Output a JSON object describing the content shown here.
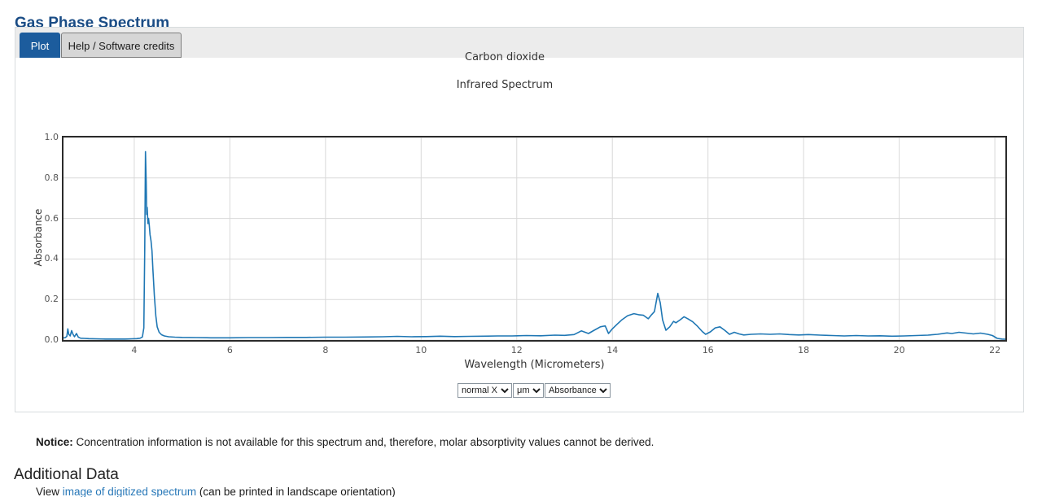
{
  "page": {
    "title": "Gas Phase Spectrum",
    "tabs": [
      {
        "label": "Plot",
        "active": true
      },
      {
        "label": "Help / Software credits",
        "active": false
      }
    ],
    "notice_label": "Notice:",
    "notice_text": " Concentration information is not available for this spectrum and, therefore, molar absorptivity values cannot be derived.",
    "additional_data_heading": "Additional Data",
    "view_prefix": "View ",
    "view_link_text": "image of digitized spectrum",
    "view_suffix": " (can be printed in landscape orientation)"
  },
  "controls": {
    "x_scale_selected": "normal X",
    "x_units_selected": "μm",
    "y_units_selected": "Absorbance"
  },
  "colors": {
    "title_blue": "#1a4c85",
    "active_tab_blue": "#1c5c9d",
    "line_blue": "#1f77b4",
    "grid_gray": "#d9d9d9",
    "frame_dark": "#2b2b2b",
    "link_blue": "#2878b8"
  },
  "chart_data": {
    "type": "line",
    "title": "Carbon dioxide",
    "subtitle": "Infrared Spectrum",
    "xlabel": "Wavelength (Micrometers)",
    "ylabel": "Absorbance",
    "xlim": [
      2.52,
      22.22
    ],
    "ylim": [
      0.0,
      1.0
    ],
    "xticks": [
      4,
      6,
      8,
      10,
      12,
      14,
      16,
      18,
      20,
      22
    ],
    "yticks": [
      0.0,
      0.2,
      0.4,
      0.6,
      0.8,
      1.0
    ],
    "grid": true,
    "legend": "none",
    "line_color": "#1f77b4",
    "series": [
      {
        "name": "Absorbance",
        "points": [
          [
            2.52,
            0.01
          ],
          [
            2.56,
            0.012
          ],
          [
            2.59,
            0.018
          ],
          [
            2.61,
            0.055
          ],
          [
            2.63,
            0.028
          ],
          [
            2.66,
            0.02
          ],
          [
            2.69,
            0.046
          ],
          [
            2.72,
            0.028
          ],
          [
            2.75,
            0.016
          ],
          [
            2.79,
            0.032
          ],
          [
            2.83,
            0.014
          ],
          [
            2.88,
            0.009
          ],
          [
            2.95,
            0.008
          ],
          [
            3.05,
            0.007
          ],
          [
            3.2,
            0.006
          ],
          [
            3.4,
            0.005
          ],
          [
            3.6,
            0.005
          ],
          [
            3.8,
            0.005
          ],
          [
            3.95,
            0.006
          ],
          [
            4.05,
            0.007
          ],
          [
            4.12,
            0.009
          ],
          [
            4.17,
            0.015
          ],
          [
            4.2,
            0.06
          ],
          [
            4.22,
            0.45
          ],
          [
            4.235,
            0.93
          ],
          [
            4.25,
            0.78
          ],
          [
            4.26,
            0.62
          ],
          [
            4.27,
            0.655
          ],
          [
            4.285,
            0.575
          ],
          [
            4.3,
            0.6
          ],
          [
            4.315,
            0.565
          ],
          [
            4.33,
            0.52
          ],
          [
            4.35,
            0.49
          ],
          [
            4.37,
            0.44
          ],
          [
            4.39,
            0.35
          ],
          [
            4.42,
            0.22
          ],
          [
            4.45,
            0.12
          ],
          [
            4.48,
            0.065
          ],
          [
            4.52,
            0.038
          ],
          [
            4.57,
            0.026
          ],
          [
            4.63,
            0.02
          ],
          [
            4.72,
            0.016
          ],
          [
            4.85,
            0.014
          ],
          [
            5.0,
            0.013
          ],
          [
            5.3,
            0.012
          ],
          [
            5.6,
            0.011
          ],
          [
            6.0,
            0.011
          ],
          [
            6.4,
            0.012
          ],
          [
            6.8,
            0.012
          ],
          [
            7.2,
            0.013
          ],
          [
            7.6,
            0.013
          ],
          [
            8.0,
            0.014
          ],
          [
            8.4,
            0.014
          ],
          [
            8.8,
            0.015
          ],
          [
            9.2,
            0.016
          ],
          [
            9.5,
            0.018
          ],
          [
            9.8,
            0.016
          ],
          [
            10.1,
            0.017
          ],
          [
            10.4,
            0.019
          ],
          [
            10.7,
            0.017
          ],
          [
            11.0,
            0.018
          ],
          [
            11.3,
            0.019
          ],
          [
            11.6,
            0.02
          ],
          [
            11.9,
            0.02
          ],
          [
            12.2,
            0.022
          ],
          [
            12.5,
            0.021
          ],
          [
            12.8,
            0.024
          ],
          [
            13.0,
            0.023
          ],
          [
            13.2,
            0.027
          ],
          [
            13.35,
            0.045
          ],
          [
            13.5,
            0.032
          ],
          [
            13.62,
            0.048
          ],
          [
            13.75,
            0.065
          ],
          [
            13.85,
            0.07
          ],
          [
            13.92,
            0.032
          ],
          [
            14.0,
            0.055
          ],
          [
            14.1,
            0.078
          ],
          [
            14.2,
            0.1
          ],
          [
            14.32,
            0.12
          ],
          [
            14.45,
            0.13
          ],
          [
            14.55,
            0.125
          ],
          [
            14.65,
            0.122
          ],
          [
            14.75,
            0.105
          ],
          [
            14.82,
            0.125
          ],
          [
            14.88,
            0.14
          ],
          [
            14.95,
            0.23
          ],
          [
            15.0,
            0.185
          ],
          [
            15.05,
            0.1
          ],
          [
            15.12,
            0.048
          ],
          [
            15.2,
            0.065
          ],
          [
            15.28,
            0.092
          ],
          [
            15.33,
            0.085
          ],
          [
            15.42,
            0.1
          ],
          [
            15.5,
            0.115
          ],
          [
            15.58,
            0.105
          ],
          [
            15.68,
            0.09
          ],
          [
            15.78,
            0.068
          ],
          [
            15.88,
            0.042
          ],
          [
            15.95,
            0.028
          ],
          [
            16.05,
            0.04
          ],
          [
            16.15,
            0.06
          ],
          [
            16.25,
            0.065
          ],
          [
            16.35,
            0.048
          ],
          [
            16.45,
            0.028
          ],
          [
            16.55,
            0.038
          ],
          [
            16.65,
            0.03
          ],
          [
            16.75,
            0.025
          ],
          [
            16.9,
            0.028
          ],
          [
            17.1,
            0.03
          ],
          [
            17.3,
            0.028
          ],
          [
            17.5,
            0.03
          ],
          [
            17.7,
            0.027
          ],
          [
            17.9,
            0.025
          ],
          [
            18.1,
            0.027
          ],
          [
            18.35,
            0.024
          ],
          [
            18.6,
            0.022
          ],
          [
            18.85,
            0.02
          ],
          [
            19.1,
            0.022
          ],
          [
            19.35,
            0.02
          ],
          [
            19.6,
            0.021
          ],
          [
            19.85,
            0.019
          ],
          [
            20.1,
            0.02
          ],
          [
            20.35,
            0.022
          ],
          [
            20.6,
            0.024
          ],
          [
            20.8,
            0.028
          ],
          [
            21.0,
            0.035
          ],
          [
            21.1,
            0.032
          ],
          [
            21.25,
            0.038
          ],
          [
            21.4,
            0.034
          ],
          [
            21.55,
            0.03
          ],
          [
            21.7,
            0.034
          ],
          [
            21.85,
            0.028
          ],
          [
            21.95,
            0.022
          ],
          [
            22.05,
            0.008
          ],
          [
            22.15,
            0.005
          ],
          [
            22.22,
            0.004
          ]
        ]
      }
    ]
  }
}
